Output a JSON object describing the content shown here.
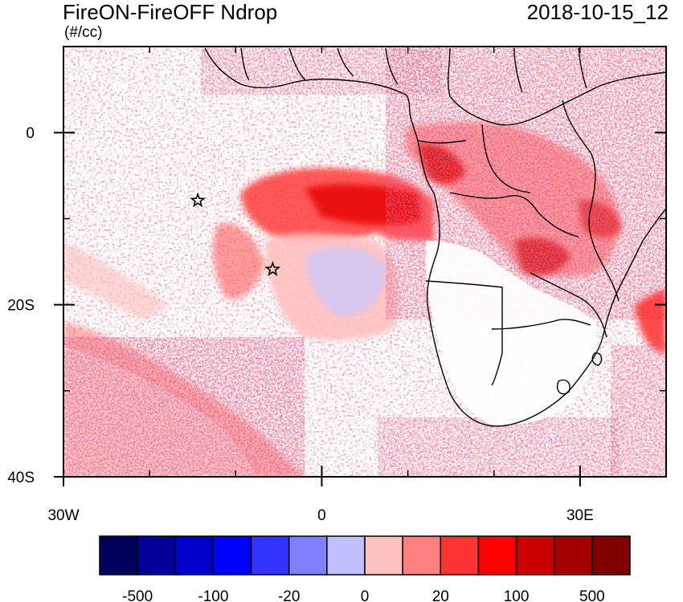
{
  "header": {
    "title": "FireON-FireOFF Ndrop",
    "units": "(#/cc)",
    "datetime": "2018-10-15_12"
  },
  "map": {
    "lon_range": [
      -30,
      40
    ],
    "lat_range": [
      -40,
      10
    ],
    "x_ticks": [
      {
        "value": -30,
        "label": "30W"
      },
      {
        "value": 0,
        "label": "0"
      },
      {
        "value": 30,
        "label": "30E"
      }
    ],
    "y_ticks": [
      {
        "value": 0,
        "label": "0"
      },
      {
        "value": -20,
        "label": "20S"
      },
      {
        "value": -40,
        "label": "40S"
      }
    ],
    "minor_lon_step": 10,
    "minor_lat_step": 10,
    "markers": [
      {
        "name": "star-marker",
        "lon": -14.4,
        "lat": -7.9
      },
      {
        "name": "star-marker",
        "lon": -5.7,
        "lat": -15.9
      }
    ]
  },
  "colorbar": {
    "colors": [
      "#00005a",
      "#000099",
      "#0000cc",
      "#0000ff",
      "#3333ff",
      "#8080ff",
      "#c0c0ff",
      "#ffc0c0",
      "#ff8080",
      "#ff3333",
      "#ff0000",
      "#cc0000",
      "#a30000",
      "#800000"
    ],
    "labels": [
      "-500",
      "-100",
      "-20",
      "0",
      "20",
      "100",
      "500"
    ]
  },
  "colors": {
    "ocean": "#ffffff",
    "land": "#ffffff",
    "outline": "#000000"
  }
}
